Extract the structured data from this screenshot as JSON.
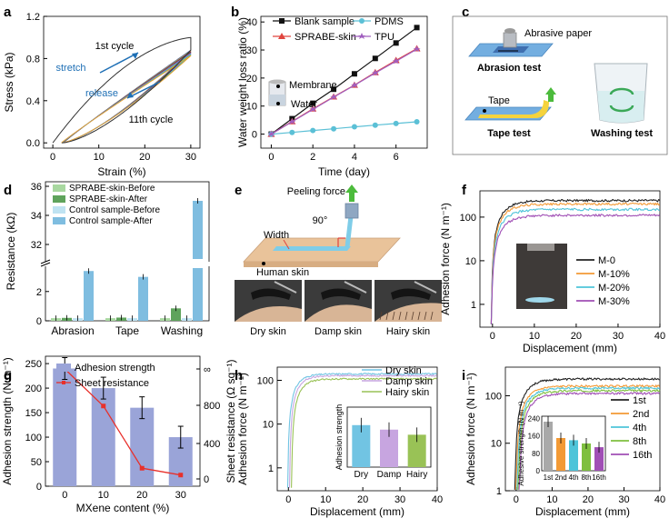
{
  "colors": {
    "blank": "#111111",
    "pdms": "#5bc0d6",
    "sprabe": "#e0443e",
    "tpu": "#a15fbf",
    "green_light": "#a8d8a0",
    "green_dark": "#5fa35c",
    "blue_light": "#bfe3f2",
    "blue_dark": "#7fbde0",
    "m0": "#222222",
    "m10": "#f39a35",
    "m20": "#4ec4d9",
    "m30": "#a04fb5",
    "bar_purple": "#9aa4d8",
    "skin_blue": "#71c4e3",
    "skin_purple": "#c7a5e0",
    "skin_green": "#99c256",
    "c1": "#222222",
    "c2": "#f39a35",
    "c4": "#4ec4d9",
    "c8": "#7fbf3f",
    "c16": "#a04fb5"
  },
  "panel_letters": [
    "a",
    "b",
    "c",
    "d",
    "e",
    "f",
    "g",
    "h",
    "i"
  ],
  "panel_c": {
    "abrasive_paper": "Abrasive paper",
    "abrasion_test": "Abrasion test",
    "tape": "Tape",
    "tape_test": "Tape test",
    "washing_test": "Washing test"
  },
  "panel_e": {
    "peeling_force": "Peeling force",
    "width": "Width",
    "angle": "90°",
    "human_skin": "Human skin",
    "photos": [
      "Dry skin",
      "Damp skin",
      "Hairy skin"
    ]
  },
  "chart_data": [
    {
      "panel": "a",
      "type": "line",
      "xlabel": "Strain (%)",
      "ylabel": "Stress (kPa)",
      "xlim": [
        0,
        30
      ],
      "ylim": [
        0,
        1.2
      ],
      "xticks": [
        0,
        10,
        20,
        30
      ],
      "yticks": [
        0.0,
        0.4,
        0.8,
        1.2
      ],
      "annotations": {
        "first_cycle": "1st cycle",
        "stretch": "stretch",
        "release": "release",
        "eleventh_cycle": "11th cycle"
      },
      "series": [
        {
          "label": "1st cycle",
          "loading_peak": 1.0
        },
        {
          "label": "11th cycle",
          "loading_peak": 0.82
        }
      ]
    },
    {
      "panel": "b",
      "type": "line",
      "xlabel": "Time (day)",
      "ylabel": "Water weight loss ratio (%)",
      "xlim": [
        -0.5,
        7.5
      ],
      "ylim": [
        -5,
        42
      ],
      "xticks": [
        0,
        2,
        4,
        6
      ],
      "yticks": [
        0,
        10,
        20,
        30,
        40
      ],
      "x": [
        0,
        1,
        2,
        3,
        4,
        5,
        6,
        7
      ],
      "inset_labels": {
        "membrane": "Membrane",
        "water": "Water"
      },
      "series": [
        {
          "name": "Blank sample",
          "values": [
            0,
            5.5,
            11,
            16,
            21.5,
            27,
            32.5,
            38
          ]
        },
        {
          "name": "SPRABE-skin",
          "values": [
            0,
            4.5,
            9,
            13.3,
            17.5,
            22,
            26.3,
            30.5
          ]
        },
        {
          "name": "PDMS",
          "values": [
            0,
            0.6,
            1.3,
            1.9,
            2.6,
            3.2,
            3.8,
            4.4
          ]
        },
        {
          "name": "TPU",
          "values": [
            0,
            4.4,
            8.8,
            13.2,
            17.4,
            21.8,
            26,
            30.3
          ]
        }
      ]
    },
    {
      "panel": "d",
      "type": "bar",
      "ylabel": "Resistance (kΩ)",
      "categories": [
        "Abrasion",
        "Tape",
        "Washing"
      ],
      "yticks_lower": [
        0,
        2
      ],
      "yticks_upper": [
        32,
        34,
        36
      ],
      "series": [
        {
          "name": "SPRABE-skin-Before",
          "values": [
            0.18,
            0.18,
            0.18
          ]
        },
        {
          "name": "SPRABE-skin-After",
          "values": [
            0.2,
            0.22,
            0.85
          ]
        },
        {
          "name": "Control sample-Before",
          "values": [
            0.18,
            0.18,
            0.18
          ]
        },
        {
          "name": "Control sample-After",
          "values": [
            3.4,
            3.0,
            35.0
          ]
        }
      ]
    },
    {
      "panel": "f",
      "type": "line",
      "xlabel": "Displacement (mm)",
      "ylabel": "Adhesion force (N m⁻¹)",
      "xlim": [
        -3,
        40
      ],
      "yscale": "log",
      "ylim": [
        0.3,
        400
      ],
      "xticks": [
        0,
        10,
        20,
        30,
        40
      ],
      "yticks": [
        1,
        10,
        100
      ],
      "series": [
        {
          "name": "M-0",
          "plateau": 240
        },
        {
          "name": "M-10%",
          "plateau": 200
        },
        {
          "name": "M-20%",
          "plateau": 150
        },
        {
          "name": "M-30%",
          "plateau": 110
        }
      ]
    },
    {
      "panel": "g",
      "type": "bar",
      "xlabel": "MXene content (%)",
      "ylabel": "Adhesion strength (N m⁻¹)",
      "ylabel_right": "Sheet resistance (Ω sq⁻¹)",
      "categories": [
        "0",
        "10",
        "20",
        "30"
      ],
      "yticks": [
        0,
        50,
        100,
        150,
        200,
        250
      ],
      "yticks_right": [
        "0",
        "400",
        "800",
        "∞"
      ],
      "series": [
        {
          "name": "Adhesion strength",
          "values": [
            240,
            200,
            160,
            100
          ]
        },
        {
          "name": "Sheet resistance",
          "values": [
            1100,
            750,
            110,
            40
          ]
        }
      ]
    },
    {
      "panel": "h",
      "type": "line",
      "xlabel": "Displacement (mm)",
      "ylabel": "Adhesion force (N m⁻¹)",
      "xlim": [
        -3,
        40
      ],
      "yscale": "log",
      "ylim": [
        0.3,
        200
      ],
      "xticks": [
        0,
        10,
        20,
        30,
        40
      ],
      "yticks": [
        1,
        10,
        100
      ],
      "series": [
        {
          "name": "Dry skin",
          "plateau": 140
        },
        {
          "name": "Damp skin",
          "plateau": 128
        },
        {
          "name": "Hairy skin",
          "plateau": 108
        }
      ],
      "inset": {
        "ylabel": "Adhesion strength",
        "categories": [
          "Dry",
          "Damp",
          "Hairy"
        ],
        "values": [
          140,
          125,
          108
        ],
        "ylim": [
          0,
          200
        ]
      }
    },
    {
      "panel": "i",
      "type": "line",
      "xlabel": "Displacement (mm)",
      "ylabel": "Adhesion force (N m⁻¹)",
      "xlim": [
        -3,
        40
      ],
      "yscale": "log",
      "ylim": [
        1,
        400
      ],
      "xticks": [
        0,
        10,
        20,
        30,
        40
      ],
      "yticks": [
        1,
        10,
        100
      ],
      "series": [
        {
          "name": "1st",
          "plateau": 225
        },
        {
          "name": "2nd",
          "plateau": 160
        },
        {
          "name": "4th",
          "plateau": 145
        },
        {
          "name": "8th",
          "plateau": 128
        },
        {
          "name": "16th",
          "plateau": 112
        }
      ],
      "inset": {
        "ylabel": "Adhesive strength (N m⁻¹)",
        "categories": [
          "1st",
          "2nd",
          "4th",
          "8th",
          "16th"
        ],
        "values": [
          225,
          150,
          140,
          125,
          108
        ],
        "ylim": [
          0,
          250
        ],
        "yticks": [
          0,
          80,
          160,
          240
        ]
      }
    }
  ]
}
